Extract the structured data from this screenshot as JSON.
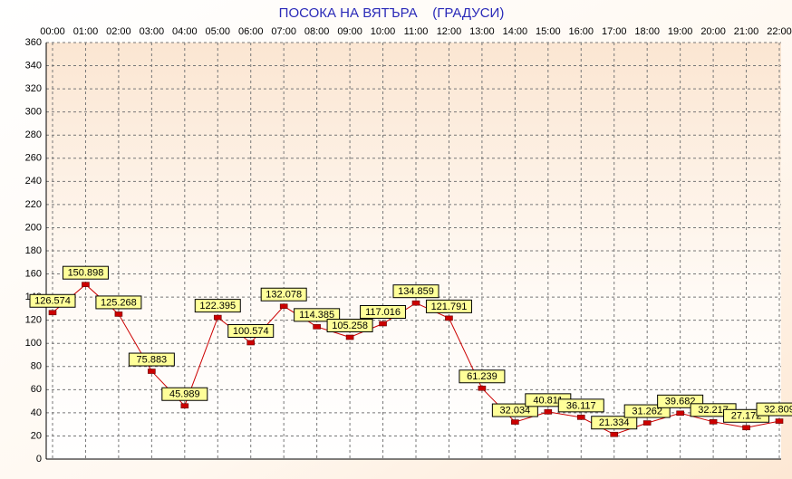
{
  "chart_data": {
    "type": "line",
    "title": "ПОСОКА НА ВЯТЪРА    (ГРАДУСИ)",
    "categories": [
      "00:00",
      "01:00",
      "02:00",
      "03:00",
      "04:00",
      "05:00",
      "06:00",
      "07:00",
      "08:00",
      "09:00",
      "10:00",
      "11:00",
      "12:00",
      "13:00",
      "14:00",
      "15:00",
      "16:00",
      "17:00",
      "18:00",
      "19:00",
      "20:00",
      "21:00",
      "22:00"
    ],
    "values": [
      126.574,
      150.898,
      125.268,
      75.883,
      45.989,
      122.395,
      100.574,
      132.078,
      114.385,
      105.258,
      117.016,
      134.859,
      121.791,
      61.239,
      32.034,
      40.811,
      36.117,
      21.334,
      31.262,
      39.682,
      32.217,
      27.172,
      32.809
    ],
    "color": "#cc0000",
    "ylim": [
      0,
      360
    ],
    "yticks": [
      0,
      20,
      40,
      60,
      80,
      100,
      120,
      140,
      160,
      180,
      200,
      220,
      240,
      260,
      280,
      300,
      320,
      340,
      360
    ],
    "grid": true
  }
}
